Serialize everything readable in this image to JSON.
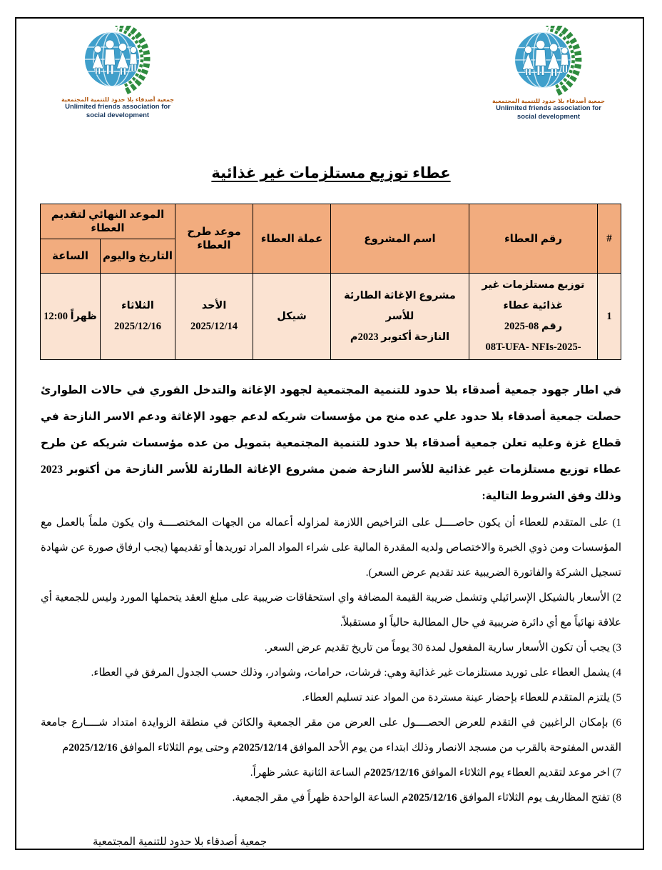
{
  "page": {
    "colors": {
      "table_header_bg": "#F2AC7E",
      "table_row_bg": "#FBE3D2",
      "page_border": "#000000",
      "logo_arabic_text": "#B2570F",
      "logo_english_text": "#17375E",
      "globe_blue": "#3F9FCB",
      "wreath_green": "#2E8C3F"
    },
    "logo": {
      "arabic": "جمعية أصدقاء بلا حدود للتنمية المجتمعية",
      "english1": "Unlimited friends association for",
      "english2": "social development"
    }
  },
  "title": "عطاء توزيع مستلزمات غير غذائية",
  "table": {
    "headers": {
      "num": "#",
      "tender_no": "رقم العطاء",
      "project_name": "اسم المشروع",
      "currency": "عملة العطاء",
      "announce_date": "موعد طرح العطاء",
      "deadline": "الموعد النهائي لتقديم العطاء",
      "date_day": "التاريخ واليوم",
      "hour": "الساعة"
    },
    "row": {
      "num": "1",
      "tender_no_line1": "توزيع مستلزمات غير غذائية عطاء",
      "tender_no_line2": "رقم 08-2025",
      "tender_no_line3": "08T-UFA- NFIs-2025-",
      "project_line1": "مشروع الإغاثة الطارئة للأسر",
      "project_line2": "النازحة أكتوبر 2023م",
      "currency": "شيكل",
      "announce_day": "الأحد",
      "announce_date": "2025/12/14",
      "deadline_day": "الثلاثاء",
      "deadline_date": "2025/12/16",
      "hour": "12:00 ظهراً"
    }
  },
  "intro": "في اطار جهود جمعية أصدقاء بلا حدود للتنمية المجتمعية لجهود الإغاثة والتدخل الفوري في حالات الطوارئ حصلت جمعية أصدقاء بلا حدود علي عده منح من مؤسسات شريكه لدعم جهود الإغاثة ودعم الاسر النازحة في قطاع غزة وعليه تعلن جمعية أصدقاء بلا حدود للتنمية المجتمعية بتمويل من عده مؤسسات شريكه عن طرح عطاء توزيع مستلزمات غير غذائية للأسر النازحة ضمن مشروع الإغاثة الطارئة للأسر النازحة من أكتوبر 2023 وذلك وفق الشروط التالية:",
  "conditions": [
    [
      {
        "t": "1) على المتقدم للعطاء أن يكون حاصــــل على التراخيص اللازمة لمزاوله أعماله من الجهات المختصــــة وان يكون ملماً بالعمل مع المؤسسات ومن ذوي الخبرة والاختصاص ولديه المقدرة المالية على شراء المواد المراد توريدها أو تقديمها (يجب ارفاق صورة عن شهادة تسجيل الشركة والفاتورة الضريبية عند تقديم عرض السعر).",
        "b": false
      }
    ],
    [
      {
        "t": "2) الأسعار بالشيكل الإسرائيلي وتشمل ضريبة القيمة المضافة واي استحقاقات ضريبية على مبلغ العقد يتحملها المورد وليس للجمعية أي علاقة نهائياً مع أي دائرة ضريبية في حال المطالبة حالياً او مستقبلاً.",
        "b": false
      }
    ],
    [
      {
        "t": "3)  يجب أن تكون الأسعار سارية المفعول لمدة 30 يوماً من تاريخ تقديم عرض السعر.",
        "b": false
      }
    ],
    [
      {
        "t": "4)  يشمل العطاء على توريد مستلزمات غير غذائية وهي: فرشات، حرامات، وشوادر، وذلك حسب الجدول المرفق في العطاء.",
        "b": false
      }
    ],
    [
      {
        "t": "5) يلتزم المتقدم للعطاء بإحضار عينة مستردة من المواد عند تسليم العطاء.",
        "b": false
      }
    ],
    [
      {
        "t": "6) بإمكان الراغبين في التقدم للعرض الحصــــول على العرض من مقر الجمعية والكائن في منطقة الزوايدة امتداد شــــارع جامعة القدس المفتوحة بالقرب من مسجد الانصار وذلك ابتداء من يوم الأحد الموافق ",
        "b": false
      },
      {
        "t": "2025/12/14",
        "b": true
      },
      {
        "t": "م وحتى يوم الثلاثاء الموافق ",
        "b": false
      },
      {
        "t": "2025/12/16",
        "b": true
      },
      {
        "t": "م",
        "b": false
      }
    ],
    [
      {
        "t": "7) اخر موعد لتقديم العطاء يوم الثلاثاء الموافق ",
        "b": false
      },
      {
        "t": "2025/12/16",
        "b": true
      },
      {
        "t": "م الساعة الثانية عشر ظهراً.",
        "b": false
      }
    ],
    [
      {
        "t": "8) تفتح المظاريف يوم الثلاثاء الموافق ",
        "b": false
      },
      {
        "t": "2025/12/16",
        "b": true
      },
      {
        "t": "م الساعة الواحدة ظهراً في مقر الجمعية.",
        "b": false
      }
    ]
  ],
  "footer": "جمعية أصدقاء بلا حدود للتنمية المجتمعية"
}
